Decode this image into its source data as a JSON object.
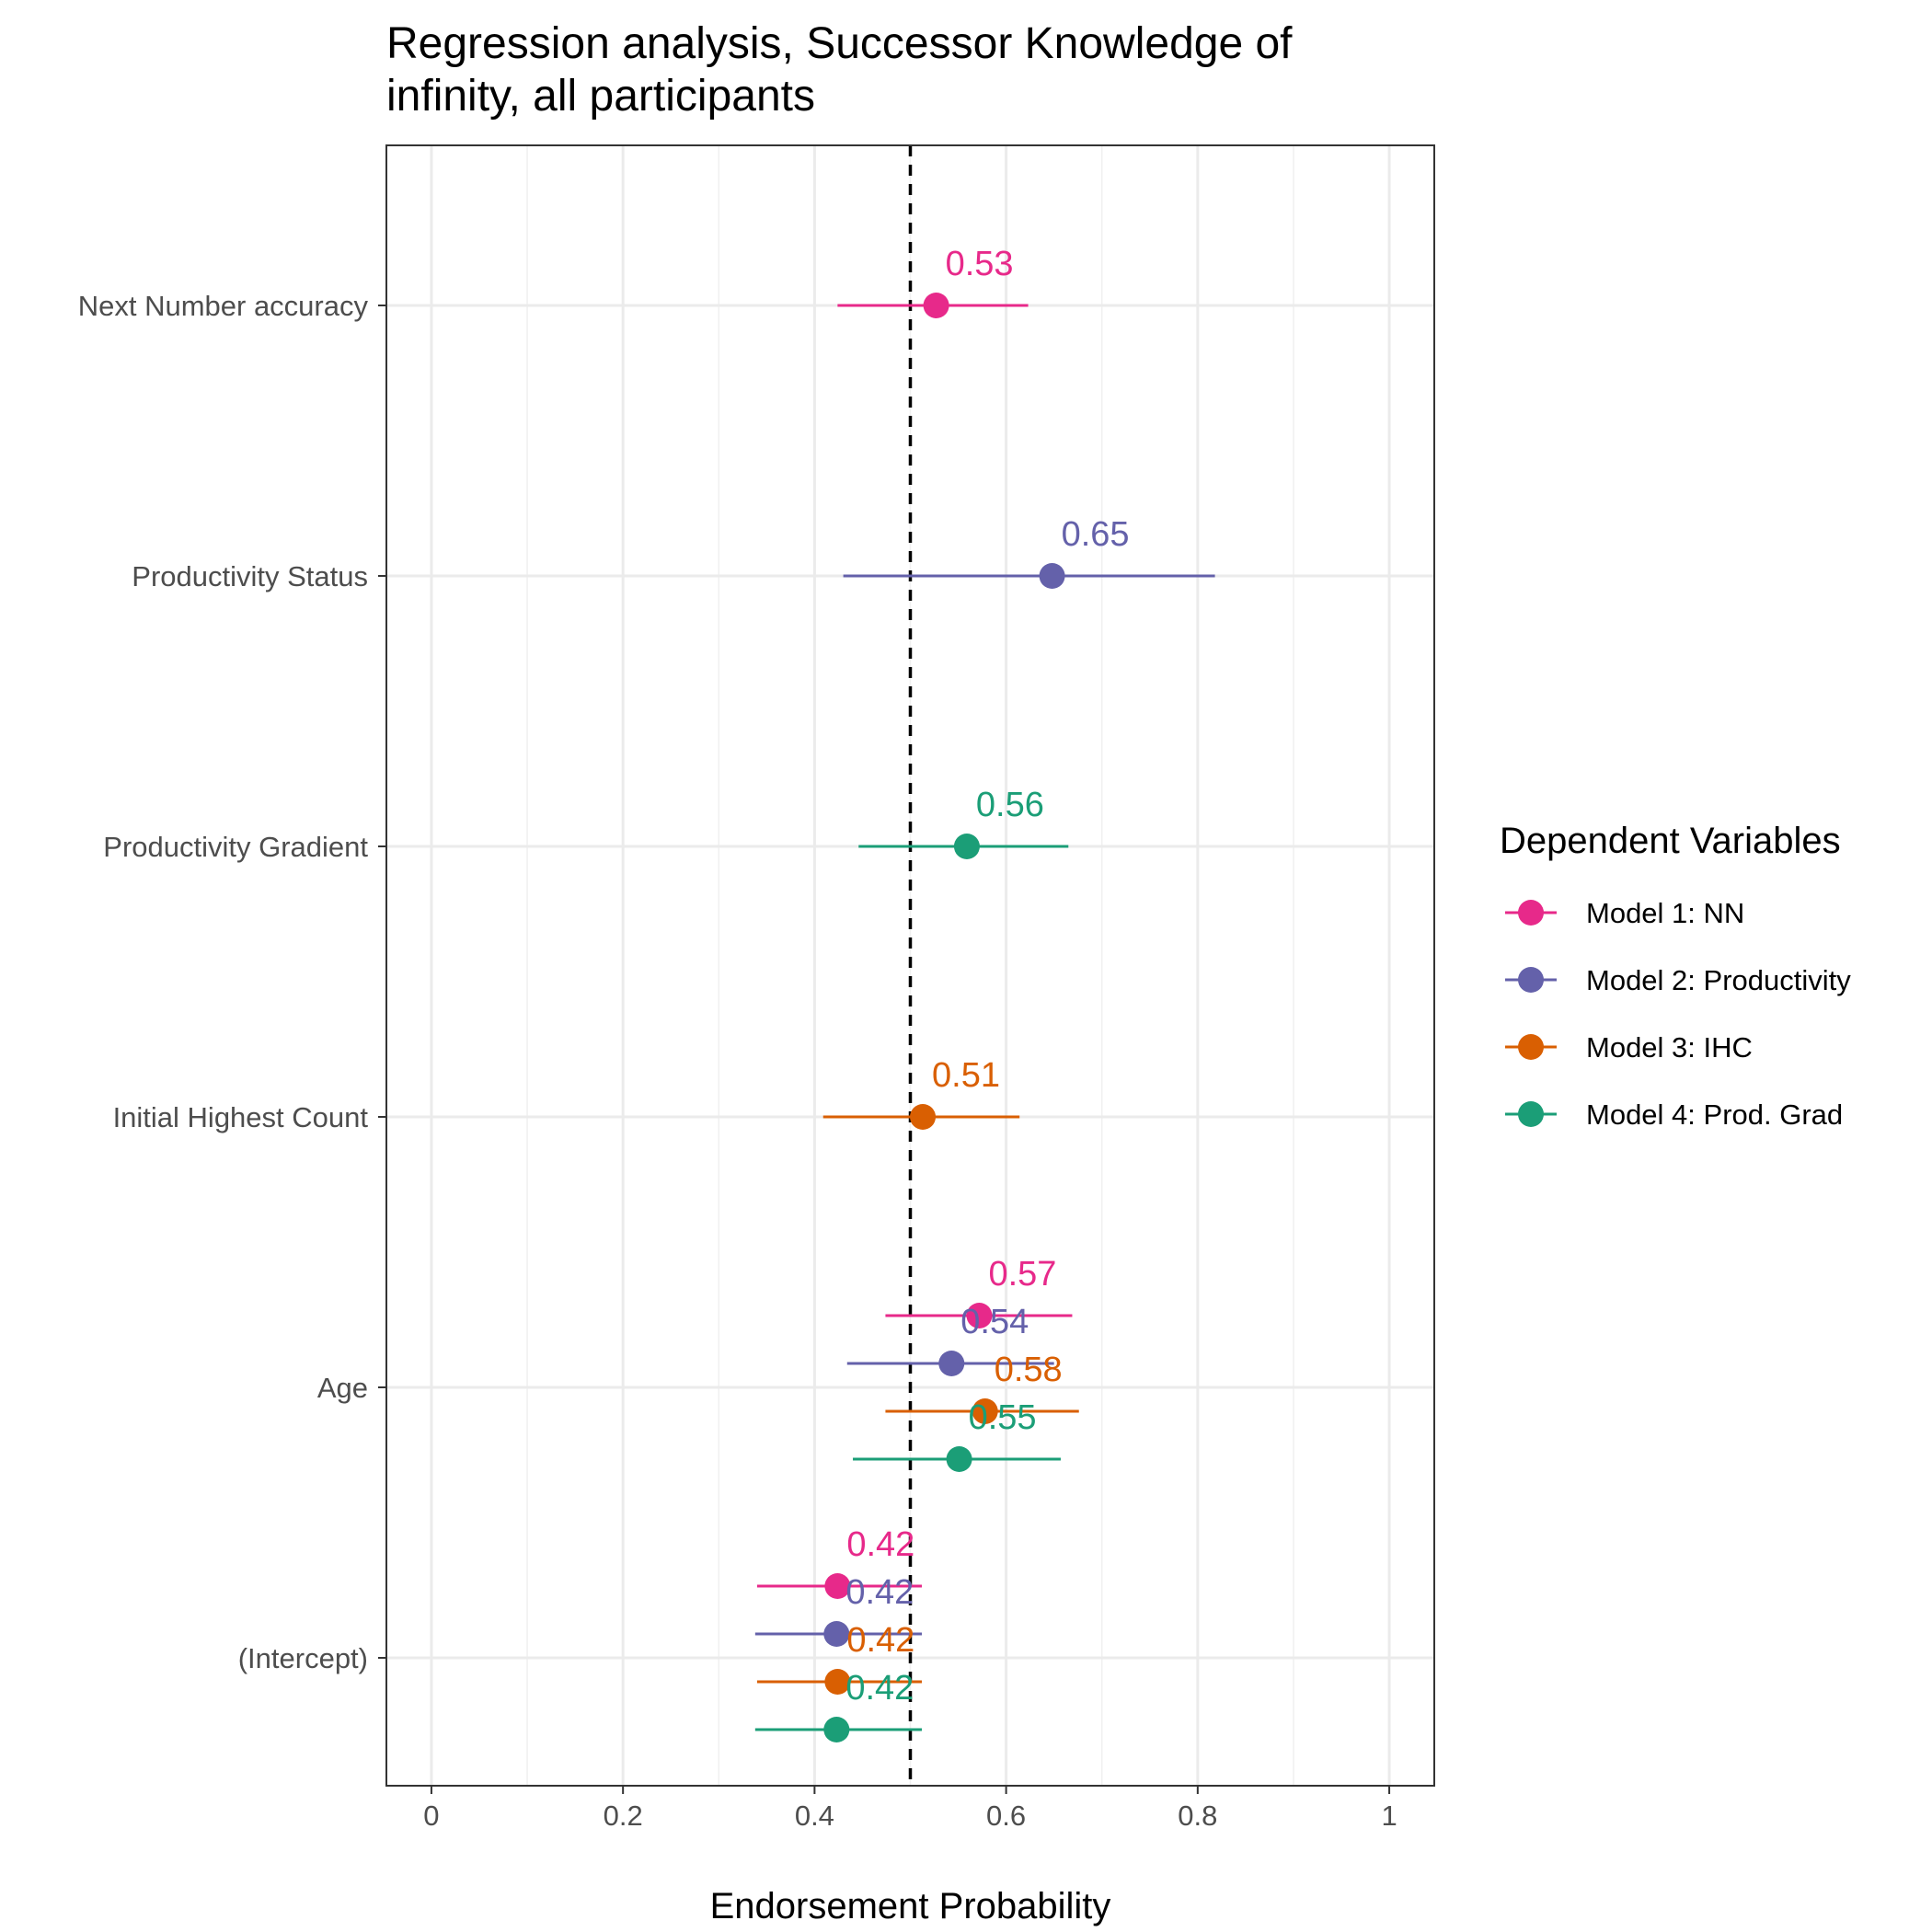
{
  "chart_data": {
    "type": "dot-and-whisker",
    "title_lines": [
      "Regression analysis, Successor Knowledge of",
      "infinity, all participants"
    ],
    "xlabel": "Endorsement Probability",
    "ylabel": "",
    "xlim": [
      -0.047,
      1.047
    ],
    "xticks": [
      0,
      0.2,
      0.4,
      0.6,
      0.8,
      1
    ],
    "xtick_labels": [
      "0",
      "0.2",
      "0.4",
      "0.6",
      "0.8",
      "1"
    ],
    "reference_line": 0.5,
    "grid": true,
    "categories": [
      "Next Number accuracy",
      "Productivity Status",
      "Productivity Gradient",
      "Initial Highest Count",
      "Age",
      "(Intercept)"
    ],
    "legend": {
      "title": "Dependent Variables",
      "position": "right"
    },
    "series": [
      {
        "name": "Model 1: NN",
        "color": "#e7298a",
        "points": [
          {
            "category": "Next Number accuracy",
            "estimate": 0.527,
            "low": 0.424,
            "high": 0.623,
            "label": "0.53"
          },
          {
            "category": "Age",
            "estimate": 0.572,
            "low": 0.474,
            "high": 0.669,
            "label": "0.57"
          },
          {
            "category": "(Intercept)",
            "estimate": 0.424,
            "low": 0.34,
            "high": 0.512,
            "label": "0.42"
          }
        ]
      },
      {
        "name": "Model 2: Productivity",
        "color": "#6461aa",
        "points": [
          {
            "category": "Productivity Status",
            "estimate": 0.648,
            "low": 0.43,
            "high": 0.818,
            "label": "0.65"
          },
          {
            "category": "Age",
            "estimate": 0.543,
            "low": 0.434,
            "high": 0.65,
            "label": "0.54"
          },
          {
            "category": "(Intercept)",
            "estimate": 0.423,
            "low": 0.338,
            "high": 0.512,
            "label": "0.42"
          }
        ]
      },
      {
        "name": "Model 3: IHC",
        "color": "#d95f02",
        "points": [
          {
            "category": "Initial Highest Count",
            "estimate": 0.513,
            "low": 0.409,
            "high": 0.614,
            "label": "0.51"
          },
          {
            "category": "Age",
            "estimate": 0.578,
            "low": 0.474,
            "high": 0.676,
            "label": "0.58"
          },
          {
            "category": "(Intercept)",
            "estimate": 0.424,
            "low": 0.34,
            "high": 0.512,
            "label": "0.42"
          }
        ]
      },
      {
        "name": "Model 4: Prod. Grad",
        "color": "#1b9e77",
        "points": [
          {
            "category": "Productivity Gradient",
            "estimate": 0.559,
            "low": 0.446,
            "high": 0.665,
            "label": "0.56"
          },
          {
            "category": "Age",
            "estimate": 0.551,
            "low": 0.44,
            "high": 0.657,
            "label": "0.55"
          },
          {
            "category": "(Intercept)",
            "estimate": 0.423,
            "low": 0.338,
            "high": 0.512,
            "label": "0.42"
          }
        ]
      }
    ]
  }
}
